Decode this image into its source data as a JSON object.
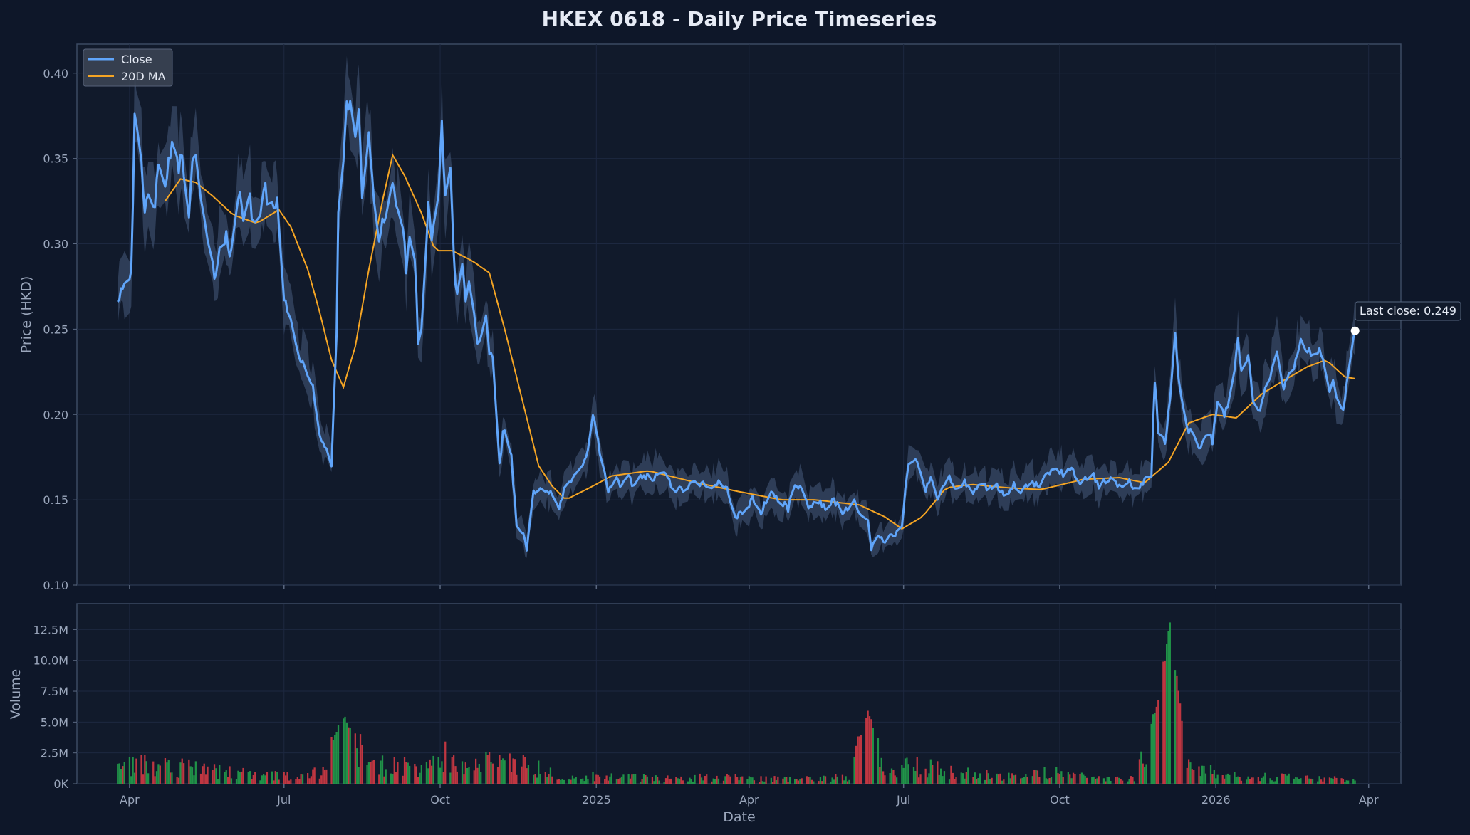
{
  "chart_data": {
    "type": "line",
    "title": "HKEX 0618 - Daily Price Timeseries",
    "xlabel": "Date",
    "ylabel_price": "Price (HKD)",
    "ylabel_volume": "Volume",
    "x_range": [
      "2024-03-01",
      "2026-04-20"
    ],
    "price_ylim": [
      0.1,
      0.417
    ],
    "volume_ylim": [
      0,
      14600000
    ],
    "price_ticks": [
      "0.10",
      "0.15",
      "0.20",
      "0.25",
      "0.30",
      "0.35",
      "0.40"
    ],
    "volume_ticks": [
      {
        "value": 0,
        "label": "0K"
      },
      {
        "value": 2500000,
        "label": "2.5M"
      },
      {
        "value": 5000000,
        "label": "5.0M"
      },
      {
        "value": 7500000,
        "label": "7.5M"
      },
      {
        "value": 10000000,
        "label": "10.0M"
      },
      {
        "value": 12500000,
        "label": "12.5M"
      }
    ],
    "x_ticks": [
      {
        "date": "2024-04-01",
        "label": "Apr"
      },
      {
        "date": "2024-07-01",
        "label": "Jul"
      },
      {
        "date": "2024-10-01",
        "label": "Oct"
      },
      {
        "date": "2025-01-01",
        "label": "2025"
      },
      {
        "date": "2025-04-01",
        "label": "Apr"
      },
      {
        "date": "2025-07-01",
        "label": "Jul"
      },
      {
        "date": "2025-10-01",
        "label": "Oct"
      },
      {
        "date": "2026-01-01",
        "label": "2026"
      },
      {
        "date": "2026-04-01",
        "label": "Apr"
      }
    ],
    "grid": true,
    "legend": {
      "placement": "top-left",
      "entries": [
        "Close",
        "20D MA"
      ]
    },
    "colors": {
      "close": "#60a5fa",
      "ma": "#f5a524",
      "band": "#3a4d6b",
      "vol_up": "#22a04b",
      "vol_down": "#d33a44",
      "background": "#0e1729",
      "plot_bg": "#111a2b",
      "grid": "#1d2840",
      "frame": "#3b4a63"
    },
    "annotation": {
      "label": "Last close: 0.249",
      "date": "2026-03-24",
      "value": 0.249
    },
    "close_keypoints": [
      [
        "2024-03-25",
        0.268
      ],
      [
        "2024-03-28",
        0.276
      ],
      [
        "2024-04-02",
        0.285
      ],
      [
        "2024-04-04",
        0.372
      ],
      [
        "2024-04-08",
        0.345
      ],
      [
        "2024-04-10",
        0.317
      ],
      [
        "2024-04-12",
        0.328
      ],
      [
        "2024-04-16",
        0.325
      ],
      [
        "2024-04-18",
        0.342
      ],
      [
        "2024-04-22",
        0.333
      ],
      [
        "2024-04-24",
        0.35
      ],
      [
        "2024-04-26",
        0.355
      ],
      [
        "2024-04-30",
        0.345
      ],
      [
        "2024-05-02",
        0.352
      ],
      [
        "2024-05-06",
        0.32
      ],
      [
        "2024-05-08",
        0.345
      ],
      [
        "2024-05-10",
        0.35
      ],
      [
        "2024-05-14",
        0.32
      ],
      [
        "2024-05-17",
        0.3
      ],
      [
        "2024-05-21",
        0.28
      ],
      [
        "2024-05-24",
        0.298
      ],
      [
        "2024-05-28",
        0.305
      ],
      [
        "2024-05-30",
        0.29
      ],
      [
        "2024-06-03",
        0.322
      ],
      [
        "2024-06-05",
        0.335
      ],
      [
        "2024-06-07",
        0.315
      ],
      [
        "2024-06-11",
        0.325
      ],
      [
        "2024-06-13",
        0.31
      ],
      [
        "2024-06-17",
        0.318
      ],
      [
        "2024-06-19",
        0.335
      ],
      [
        "2024-06-21",
        0.327
      ],
      [
        "2024-06-25",
        0.318
      ],
      [
        "2024-06-27",
        0.325
      ],
      [
        "2024-06-28",
        0.312
      ],
      [
        "2024-07-01",
        0.27
      ],
      [
        "2024-07-04",
        0.26
      ],
      [
        "2024-07-08",
        0.24
      ],
      [
        "2024-07-10",
        0.235
      ],
      [
        "2024-07-12",
        0.23
      ],
      [
        "2024-07-15",
        0.22
      ],
      [
        "2024-07-18",
        0.215
      ],
      [
        "2024-07-22",
        0.19
      ],
      [
        "2024-07-25",
        0.18
      ],
      [
        "2024-07-29",
        0.17
      ],
      [
        "2024-08-01",
        0.25
      ],
      [
        "2024-08-03",
        0.395
      ],
      [
        "2024-08-05",
        0.345
      ],
      [
        "2024-08-07",
        0.38
      ],
      [
        "2024-08-09",
        0.385
      ],
      [
        "2024-08-12",
        0.365
      ],
      [
        "2024-08-14",
        0.375
      ],
      [
        "2024-08-16",
        0.33
      ],
      [
        "2024-08-20",
        0.365
      ],
      [
        "2024-08-22",
        0.34
      ],
      [
        "2024-08-26",
        0.3
      ],
      [
        "2024-08-28",
        0.315
      ],
      [
        "2024-08-30",
        0.315
      ],
      [
        "2024-09-03",
        0.335
      ],
      [
        "2024-09-05",
        0.325
      ],
      [
        "2024-09-09",
        0.31
      ],
      [
        "2024-09-11",
        0.285
      ],
      [
        "2024-09-13",
        0.3
      ],
      [
        "2024-09-16",
        0.29
      ],
      [
        "2024-09-18",
        0.245
      ],
      [
        "2024-09-20",
        0.25
      ],
      [
        "2024-09-24",
        0.32
      ],
      [
        "2024-09-26",
        0.3
      ],
      [
        "2024-09-30",
        0.33
      ],
      [
        "2024-10-02",
        0.37
      ],
      [
        "2024-10-04",
        0.33
      ],
      [
        "2024-10-07",
        0.345
      ],
      [
        "2024-10-09",
        0.29
      ],
      [
        "2024-10-11",
        0.27
      ],
      [
        "2024-10-14",
        0.29
      ],
      [
        "2024-10-16",
        0.265
      ],
      [
        "2024-10-18",
        0.28
      ],
      [
        "2024-10-22",
        0.25
      ],
      [
        "2024-10-24",
        0.24
      ],
      [
        "2024-10-28",
        0.255
      ],
      [
        "2024-10-30",
        0.235
      ],
      [
        "2024-11-01",
        0.23
      ],
      [
        "2024-11-05",
        0.17
      ],
      [
        "2024-11-07",
        0.19
      ],
      [
        "2024-11-09",
        0.19
      ],
      [
        "2024-11-12",
        0.175
      ],
      [
        "2024-11-15",
        0.135
      ],
      [
        "2024-11-19",
        0.13
      ],
      [
        "2024-11-21",
        0.122
      ],
      [
        "2024-11-25",
        0.155
      ],
      [
        "2024-11-29",
        0.158
      ],
      [
        "2024-12-03",
        0.155
      ],
      [
        "2024-12-06",
        0.152
      ],
      [
        "2024-12-10",
        0.145
      ],
      [
        "2024-12-13",
        0.155
      ],
      [
        "2024-12-17",
        0.16
      ],
      [
        "2024-12-20",
        0.165
      ],
      [
        "2024-12-24",
        0.172
      ],
      [
        "2024-12-27",
        0.18
      ],
      [
        "2024-12-30",
        0.2
      ],
      [
        "2025-01-03",
        0.178
      ],
      [
        "2025-01-06",
        0.165
      ],
      [
        "2025-01-08",
        0.155
      ],
      [
        "2025-01-13",
        0.162
      ],
      [
        "2025-01-16",
        0.157
      ],
      [
        "2025-01-20",
        0.163
      ],
      [
        "2025-01-23",
        0.158
      ],
      [
        "2025-01-28",
        0.165
      ],
      [
        "2025-02-04",
        0.162
      ],
      [
        "2025-02-10",
        0.168
      ],
      [
        "2025-02-13",
        0.16
      ],
      [
        "2025-02-18",
        0.155
      ],
      [
        "2025-02-24",
        0.158
      ],
      [
        "2025-03-03",
        0.16
      ],
      [
        "2025-03-10",
        0.155
      ],
      [
        "2025-03-14",
        0.16
      ],
      [
        "2025-03-19",
        0.157
      ],
      [
        "2025-03-24",
        0.14
      ],
      [
        "2025-03-28",
        0.143
      ],
      [
        "2025-04-03",
        0.15
      ],
      [
        "2025-04-08",
        0.143
      ],
      [
        "2025-04-14",
        0.155
      ],
      [
        "2025-04-18",
        0.15
      ],
      [
        "2025-04-24",
        0.145
      ],
      [
        "2025-04-28",
        0.16
      ],
      [
        "2025-05-02",
        0.155
      ],
      [
        "2025-05-07",
        0.145
      ],
      [
        "2025-05-12",
        0.15
      ],
      [
        "2025-05-16",
        0.145
      ],
      [
        "2025-05-21",
        0.15
      ],
      [
        "2025-05-26",
        0.143
      ],
      [
        "2025-06-02",
        0.148
      ],
      [
        "2025-06-06",
        0.14
      ],
      [
        "2025-06-10",
        0.14
      ],
      [
        "2025-06-12",
        0.12
      ],
      [
        "2025-06-16",
        0.13
      ],
      [
        "2025-06-19",
        0.125
      ],
      [
        "2025-06-23",
        0.128
      ],
      [
        "2025-06-26",
        0.128
      ],
      [
        "2025-06-30",
        0.135
      ],
      [
        "2025-07-02",
        0.155
      ],
      [
        "2025-07-04",
        0.173
      ],
      [
        "2025-07-07",
        0.175
      ],
      [
        "2025-07-10",
        0.168
      ],
      [
        "2025-07-14",
        0.155
      ],
      [
        "2025-07-17",
        0.165
      ],
      [
        "2025-07-21",
        0.15
      ],
      [
        "2025-07-24",
        0.16
      ],
      [
        "2025-07-28",
        0.163
      ],
      [
        "2025-08-01",
        0.155
      ],
      [
        "2025-08-06",
        0.16
      ],
      [
        "2025-08-11",
        0.155
      ],
      [
        "2025-08-15",
        0.16
      ],
      [
        "2025-08-20",
        0.155
      ],
      [
        "2025-08-25",
        0.158
      ],
      [
        "2025-08-29",
        0.152
      ],
      [
        "2025-09-04",
        0.158
      ],
      [
        "2025-09-09",
        0.155
      ],
      [
        "2025-09-15",
        0.16
      ],
      [
        "2025-09-19",
        0.158
      ],
      [
        "2025-09-24",
        0.165
      ],
      [
        "2025-09-29",
        0.17
      ],
      [
        "2025-10-03",
        0.165
      ],
      [
        "2025-10-08",
        0.168
      ],
      [
        "2025-10-14",
        0.16
      ],
      [
        "2025-10-20",
        0.165
      ],
      [
        "2025-10-24",
        0.158
      ],
      [
        "2025-10-30",
        0.162
      ],
      [
        "2025-11-05",
        0.158
      ],
      [
        "2025-11-10",
        0.162
      ],
      [
        "2025-11-14",
        0.155
      ],
      [
        "2025-11-18",
        0.158
      ],
      [
        "2025-11-20",
        0.163
      ],
      [
        "2025-11-24",
        0.165
      ],
      [
        "2025-11-26",
        0.22
      ],
      [
        "2025-11-28",
        0.19
      ],
      [
        "2025-12-02",
        0.185
      ],
      [
        "2025-12-04",
        0.2
      ],
      [
        "2025-12-08",
        0.245
      ],
      [
        "2025-12-10",
        0.22
      ],
      [
        "2025-12-12",
        0.21
      ],
      [
        "2025-12-16",
        0.19
      ],
      [
        "2025-12-19",
        0.19
      ],
      [
        "2025-12-23",
        0.18
      ],
      [
        "2025-12-26",
        0.19
      ],
      [
        "2025-12-30",
        0.185
      ],
      [
        "2026-01-02",
        0.205
      ],
      [
        "2026-01-06",
        0.2
      ],
      [
        "2026-01-09",
        0.21
      ],
      [
        "2026-01-12",
        0.225
      ],
      [
        "2026-01-14",
        0.245
      ],
      [
        "2026-01-16",
        0.225
      ],
      [
        "2026-01-20",
        0.232
      ],
      [
        "2026-01-23",
        0.21
      ],
      [
        "2026-01-27",
        0.2
      ],
      [
        "2026-01-30",
        0.215
      ],
      [
        "2026-02-03",
        0.225
      ],
      [
        "2026-02-06",
        0.235
      ],
      [
        "2026-02-10",
        0.215
      ],
      [
        "2026-02-13",
        0.225
      ],
      [
        "2026-02-17",
        0.23
      ],
      [
        "2026-02-20",
        0.245
      ],
      [
        "2026-02-24",
        0.236
      ],
      [
        "2026-02-27",
        0.235
      ],
      [
        "2026-03-03",
        0.238
      ],
      [
        "2026-03-06",
        0.23
      ],
      [
        "2026-03-09",
        0.215
      ],
      [
        "2026-03-12",
        0.218
      ],
      [
        "2026-03-14",
        0.2
      ],
      [
        "2026-03-17",
        0.202
      ],
      [
        "2026-03-20",
        0.225
      ],
      [
        "2026-03-24",
        0.249
      ]
    ],
    "ma_keypoints": [
      [
        "2024-04-22",
        0.325
      ],
      [
        "2024-05-01",
        0.338
      ],
      [
        "2024-05-10",
        0.336
      ],
      [
        "2024-05-20",
        0.328
      ],
      [
        "2024-06-01",
        0.317
      ],
      [
        "2024-06-15",
        0.312
      ],
      [
        "2024-06-28",
        0.32
      ],
      [
        "2024-07-05",
        0.31
      ],
      [
        "2024-07-15",
        0.285
      ],
      [
        "2024-07-22",
        0.26
      ],
      [
        "2024-07-29",
        0.232
      ],
      [
        "2024-08-05",
        0.216
      ],
      [
        "2024-08-12",
        0.24
      ],
      [
        "2024-08-20",
        0.285
      ],
      [
        "2024-08-28",
        0.325
      ],
      [
        "2024-09-03",
        0.352
      ],
      [
        "2024-09-10",
        0.34
      ],
      [
        "2024-09-20",
        0.318
      ],
      [
        "2024-09-28",
        0.296
      ],
      [
        "2024-10-08",
        0.296
      ],
      [
        "2024-10-20",
        0.29
      ],
      [
        "2024-10-30",
        0.283
      ],
      [
        "2024-11-08",
        0.25
      ],
      [
        "2024-11-18",
        0.21
      ],
      [
        "2024-11-28",
        0.17
      ],
      [
        "2024-12-06",
        0.158
      ],
      [
        "2024-12-14",
        0.15
      ],
      [
        "2024-12-28",
        0.157
      ],
      [
        "2025-01-10",
        0.164
      ],
      [
        "2025-02-01",
        0.167
      ],
      [
        "2025-03-01",
        0.16
      ],
      [
        "2025-03-25",
        0.155
      ],
      [
        "2025-04-20",
        0.15
      ],
      [
        "2025-05-10",
        0.15
      ],
      [
        "2025-06-05",
        0.147
      ],
      [
        "2025-06-20",
        0.14
      ],
      [
        "2025-06-30",
        0.133
      ],
      [
        "2025-07-12",
        0.14
      ],
      [
        "2025-07-26",
        0.157
      ],
      [
        "2025-08-10",
        0.159
      ],
      [
        "2025-09-01",
        0.157
      ],
      [
        "2025-09-20",
        0.156
      ],
      [
        "2025-10-15",
        0.162
      ],
      [
        "2025-11-05",
        0.163
      ],
      [
        "2025-11-20",
        0.16
      ],
      [
        "2025-12-04",
        0.172
      ],
      [
        "2025-12-16",
        0.195
      ],
      [
        "2025-12-30",
        0.2
      ],
      [
        "2026-01-13",
        0.198
      ],
      [
        "2026-01-28",
        0.212
      ],
      [
        "2026-02-10",
        0.22
      ],
      [
        "2026-02-24",
        0.228
      ],
      [
        "2026-03-07",
        0.232
      ],
      [
        "2026-03-18",
        0.222
      ],
      [
        "2026-03-24",
        0.221
      ]
    ],
    "volume_keypoints": [
      [
        "2024-03-25",
        1800000
      ],
      [
        "2024-04-05",
        2200000
      ],
      [
        "2024-04-20",
        1900000
      ],
      [
        "2024-05-10",
        1500000
      ],
      [
        "2024-06-01",
        1100000
      ],
      [
        "2024-06-20",
        900000
      ],
      [
        "2024-07-10",
        700000
      ],
      [
        "2024-07-25",
        1300000
      ],
      [
        "2024-08-04",
        5900000
      ],
      [
        "2024-08-08",
        5000000
      ],
      [
        "2024-08-15",
        3500000
      ],
      [
        "2024-08-25",
        2200000
      ],
      [
        "2024-09-10",
        1800000
      ],
      [
        "2024-09-25",
        1900000
      ],
      [
        "2024-10-02",
        3200000
      ],
      [
        "2024-10-15",
        2000000
      ],
      [
        "2024-11-01",
        2400000
      ],
      [
        "2024-11-10",
        2000000
      ],
      [
        "2024-11-25",
        1900000
      ],
      [
        "2024-12-10",
        900000
      ],
      [
        "2025-01-10",
        700000
      ],
      [
        "2025-02-10",
        600000
      ],
      [
        "2025-03-10",
        700000
      ],
      [
        "2025-04-10",
        500000
      ],
      [
        "2025-05-10",
        550000
      ],
      [
        "2025-05-30",
        800000
      ],
      [
        "2025-06-10",
        6400000
      ],
      [
        "2025-06-20",
        700000
      ],
      [
        "2025-07-05",
        2000000
      ],
      [
        "2025-08-05",
        1100000
      ],
      [
        "2025-09-05",
        700000
      ],
      [
        "2025-09-30",
        1300000
      ],
      [
        "2025-10-20",
        500000
      ],
      [
        "2025-11-15",
        600000
      ],
      [
        "2025-11-28",
        7300000
      ],
      [
        "2025-12-05",
        13400000
      ],
      [
        "2025-12-15",
        2000000
      ],
      [
        "2026-01-05",
        800000
      ],
      [
        "2026-02-10",
        700000
      ],
      [
        "2026-03-10",
        500000
      ],
      [
        "2026-03-24",
        500000
      ]
    ]
  }
}
